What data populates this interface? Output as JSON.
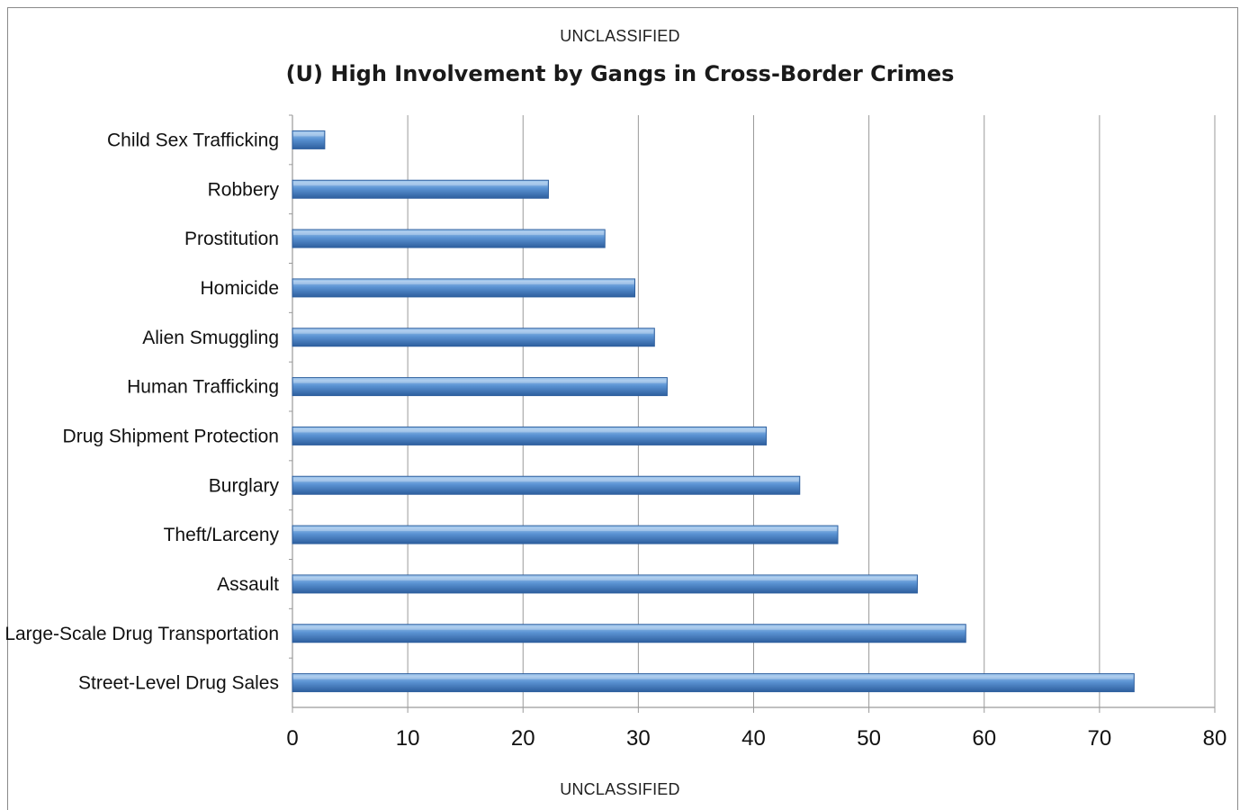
{
  "marking_top": "UNCLASSIFIED",
  "marking_bottom": "UNCLASSIFIED",
  "colors": {
    "bar_light": "#a9cdf0",
    "bar_mid": "#5b93d3",
    "bar_dark": "#2e5f9e",
    "gridline": "#9a9a9a"
  },
  "chart_data": {
    "type": "bar",
    "orientation": "horizontal",
    "title": "(U) High Involvement by Gangs in Cross-Border Crimes",
    "xlabel": "",
    "ylabel": "",
    "xlim": [
      0,
      80
    ],
    "x_ticks": [
      0,
      10,
      20,
      30,
      40,
      50,
      60,
      70,
      80
    ],
    "grid": "vertical",
    "legend": "none",
    "categories": [
      "Child Sex Trafficking",
      "Robbery",
      "Prostitution",
      "Homicide",
      "Alien Smuggling",
      "Human Trafficking",
      "Drug Shipment Protection",
      "Burglary",
      "Theft/Larceny",
      "Assault",
      "Large-Scale Drug Transportation",
      "Street-Level Drug Sales"
    ],
    "values": [
      2.8,
      22.2,
      27.1,
      29.7,
      31.4,
      32.5,
      41.1,
      44.0,
      47.3,
      54.2,
      58.4,
      73.0
    ]
  }
}
